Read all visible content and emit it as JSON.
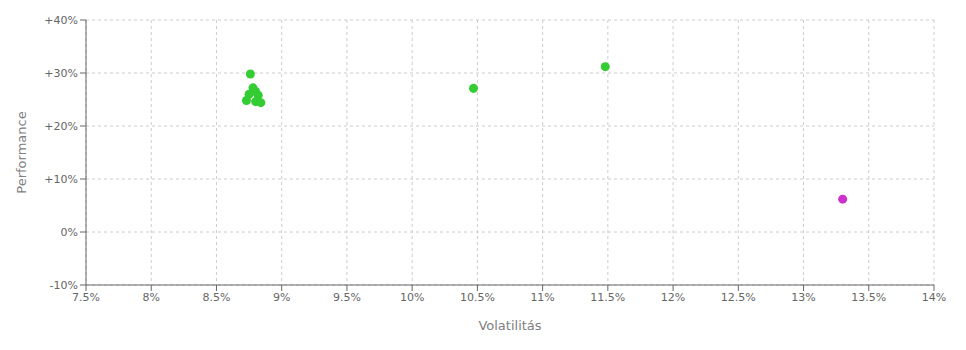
{
  "chart_data": {
    "type": "scatter",
    "xlabel": "Volatilitás",
    "ylabel": "Performance",
    "xlim": [
      0.075,
      0.14
    ],
    "ylim": [
      -0.1,
      0.4
    ],
    "xticks": [
      {
        "value": 0.075,
        "label": "7.5%"
      },
      {
        "value": 0.08,
        "label": "8%"
      },
      {
        "value": 0.085,
        "label": "8.5%"
      },
      {
        "value": 0.09,
        "label": "9%"
      },
      {
        "value": 0.095,
        "label": "9.5%"
      },
      {
        "value": 0.1,
        "label": "10%"
      },
      {
        "value": 0.105,
        "label": "10.5%"
      },
      {
        "value": 0.11,
        "label": "11%"
      },
      {
        "value": 0.115,
        "label": "11.5%"
      },
      {
        "value": 0.12,
        "label": "12%"
      },
      {
        "value": 0.125,
        "label": "12.5%"
      },
      {
        "value": 0.13,
        "label": "13%"
      },
      {
        "value": 0.135,
        "label": "13.5%"
      },
      {
        "value": 0.14,
        "label": "14%"
      }
    ],
    "yticks": [
      {
        "value": -0.1,
        "label": "-10%"
      },
      {
        "value": 0.0,
        "label": "0%"
      },
      {
        "value": 0.1,
        "label": "+10%"
      },
      {
        "value": 0.2,
        "label": "+20%"
      },
      {
        "value": 0.3,
        "label": "+30%"
      },
      {
        "value": 0.4,
        "label": "+40%"
      }
    ],
    "grid": true,
    "series": [
      {
        "color": "#33cc33",
        "x": [
          0.0876,
          0.0878,
          0.088,
          0.0875,
          0.0882,
          0.0873,
          0.088,
          0.0884,
          0.1047,
          0.1148
        ],
        "values": [
          0.298,
          0.272,
          0.265,
          0.26,
          0.258,
          0.248,
          0.246,
          0.244,
          0.271,
          0.312
        ]
      },
      {
        "color": "#cc33cc",
        "x": [
          0.133
        ],
        "values": [
          0.062
        ]
      }
    ]
  }
}
